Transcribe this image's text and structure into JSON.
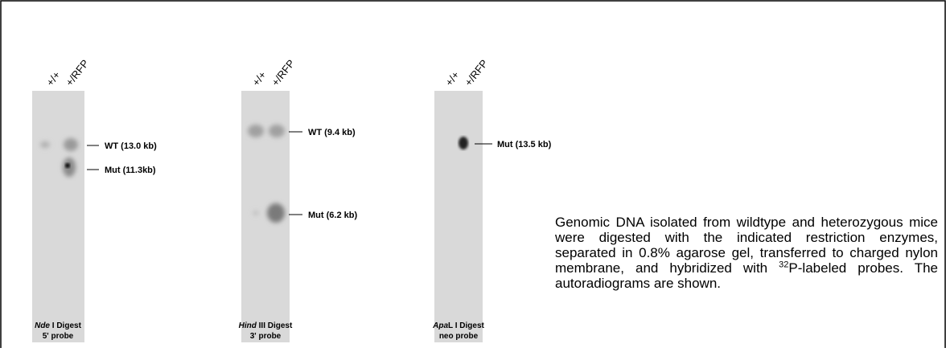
{
  "blots": [
    {
      "lanes": [
        "+/+",
        "+/RFP"
      ],
      "bands": [
        "WT (13.0 kb)",
        "Mut (11.3kb)"
      ],
      "enzyme": "Nde",
      "enzyme_rest": " I Digest",
      "probe": "5' probe"
    },
    {
      "lanes": [
        "+/+",
        "+/RFP"
      ],
      "bands": [
        "WT (9.4 kb)",
        "Mut (6.2 kb)"
      ],
      "enzyme": "Hind",
      "enzyme_rest": " III Digest",
      "probe": "3' probe"
    },
    {
      "lanes": [
        "+/+",
        "+/RFP"
      ],
      "bands": [
        "Mut (13.5 kb)"
      ],
      "enzyme": "Apa",
      "enzyme_rest": "L I Digest",
      "probe": "neo probe"
    }
  ],
  "caption": {
    "before": "Genomic DNA isolated from wildtype and heterozygous mice were digested with the indicated restriction enzymes, separated in 0.8% agarose gel, transferred to charged nylon membrane, and hybridized with ",
    "sup": "32",
    "after": "P-labeled probes. The autoradiograms are shown."
  }
}
